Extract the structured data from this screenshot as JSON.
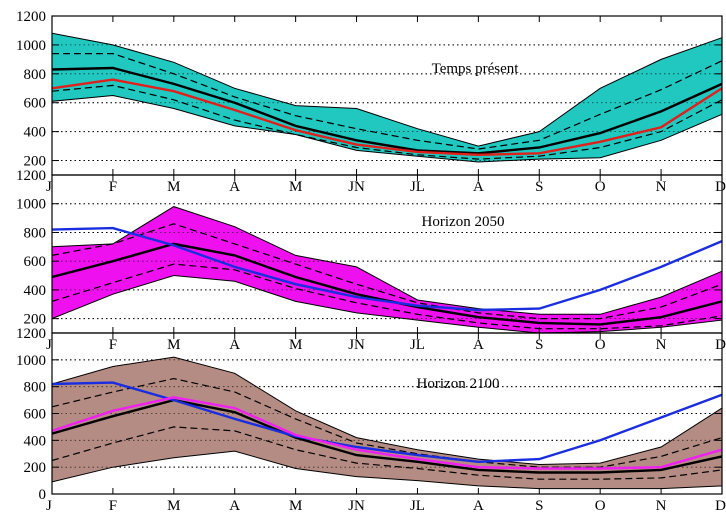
{
  "chart_data": [
    {
      "type": "line",
      "title": "Temps présent",
      "categories": [
        "J",
        "F",
        "M",
        "A",
        "M",
        "JN",
        "JL",
        "A",
        "S",
        "O",
        "N",
        "D"
      ],
      "ylim": [
        100,
        1200
      ],
      "yticks": [
        200,
        400,
        600,
        800,
        1000,
        1200
      ],
      "grid": true,
      "band": {
        "upper": [
          1080,
          1000,
          880,
          700,
          580,
          560,
          420,
          300,
          400,
          700,
          900,
          1050
        ],
        "lower": [
          610,
          650,
          560,
          440,
          380,
          270,
          230,
          190,
          210,
          220,
          340,
          520
        ],
        "color": "#20c8c0"
      },
      "series": [
        {
          "values": [
            830,
            840,
            730,
            600,
            440,
            340,
            270,
            250,
            290,
            390,
            540,
            730
          ],
          "color": "#000000",
          "style": "solid"
        },
        {
          "values": [
            940,
            940,
            800,
            640,
            510,
            420,
            340,
            280,
            340,
            520,
            690,
            890
          ],
          "color": "#000000",
          "style": "dashed"
        },
        {
          "values": [
            680,
            720,
            620,
            480,
            380,
            290,
            240,
            210,
            230,
            290,
            400,
            620
          ],
          "color": "#000000",
          "style": "dashed"
        },
        {
          "values": [
            700,
            760,
            680,
            550,
            410,
            310,
            260,
            240,
            250,
            330,
            430,
            700
          ],
          "color": "#e0201c",
          "style": "solid"
        }
      ]
    },
    {
      "type": "line",
      "title": "Horizon 2050",
      "categories": [
        "J",
        "F",
        "M",
        "A",
        "M",
        "JN",
        "JL",
        "A",
        "S",
        "O",
        "N",
        "D"
      ],
      "ylim": [
        100,
        1200
      ],
      "yticks": [
        200,
        400,
        600,
        800,
        1000,
        1200
      ],
      "grid": true,
      "band": {
        "upper": [
          700,
          720,
          980,
          840,
          640,
          560,
          330,
          270,
          230,
          230,
          350,
          530
        ],
        "lower": [
          200,
          370,
          500,
          460,
          320,
          240,
          190,
          140,
          100,
          110,
          140,
          190
        ],
        "color": "#ee10ee"
      },
      "series": [
        {
          "values": [
            490,
            600,
            720,
            640,
            490,
            370,
            280,
            210,
            170,
            160,
            210,
            320
          ],
          "color": "#000000",
          "style": "solid"
        },
        {
          "values": [
            640,
            720,
            860,
            720,
            580,
            440,
            310,
            240,
            200,
            200,
            280,
            440
          ],
          "color": "#000000",
          "style": "dashed"
        },
        {
          "values": [
            320,
            450,
            580,
            540,
            410,
            310,
            230,
            170,
            130,
            130,
            150,
            220
          ],
          "color": "#000000",
          "style": "dashed"
        },
        {
          "values": [
            820,
            830,
            710,
            560,
            440,
            350,
            290,
            260,
            270,
            400,
            560,
            740
          ],
          "color": "#1a2ee0",
          "style": "solid"
        }
      ]
    },
    {
      "type": "line",
      "title": "Horizon 2100",
      "categories": [
        "J",
        "F",
        "M",
        "A",
        "M",
        "JN",
        "JL",
        "A",
        "S",
        "O",
        "N",
        "D"
      ],
      "ylim": [
        0,
        1200
      ],
      "yticks": [
        0,
        200,
        400,
        600,
        800,
        1000,
        1200
      ],
      "grid": true,
      "band": {
        "upper": [
          820,
          950,
          1020,
          900,
          620,
          420,
          330,
          260,
          220,
          230,
          350,
          640
        ],
        "lower": [
          90,
          200,
          270,
          320,
          190,
          130,
          100,
          60,
          40,
          40,
          40,
          60
        ],
        "color": "#b48c84"
      },
      "series": [
        {
          "values": [
            450,
            580,
            700,
            610,
            420,
            290,
            240,
            180,
            160,
            160,
            180,
            280
          ],
          "color": "#000000",
          "style": "solid"
        },
        {
          "values": [
            650,
            760,
            860,
            760,
            560,
            380,
            300,
            240,
            200,
            200,
            280,
            420
          ],
          "color": "#000000",
          "style": "dashed"
        },
        {
          "values": [
            250,
            380,
            500,
            470,
            330,
            230,
            190,
            140,
            110,
            110,
            120,
            180
          ],
          "color": "#000000",
          "style": "dashed"
        },
        {
          "values": [
            820,
            830,
            700,
            560,
            430,
            350,
            290,
            240,
            260,
            400,
            570,
            740
          ],
          "color": "#1a2ee0",
          "style": "solid"
        },
        {
          "values": [
            470,
            620,
            720,
            640,
            440,
            330,
            260,
            200,
            190,
            190,
            200,
            330
          ],
          "color": "#f020f0",
          "style": "solid"
        }
      ]
    }
  ]
}
